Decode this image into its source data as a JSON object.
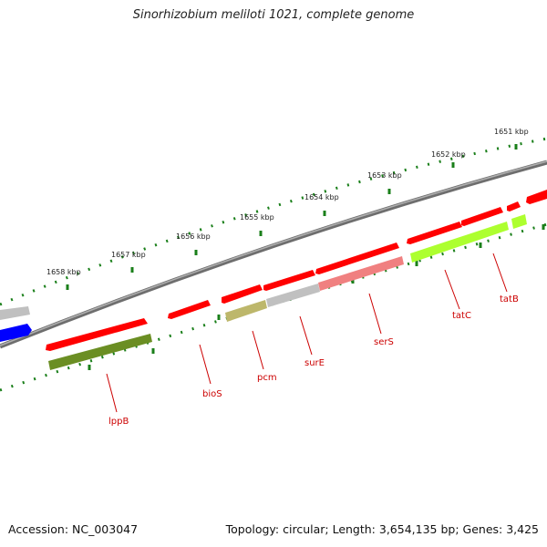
{
  "title": "Sinorhizobium meliloti 1021, complete genome",
  "footer": {
    "accession": "Accession: NC_003047",
    "summary": "Topology: circular; Length: 3,654,135 bp; Genes: 3,425"
  },
  "scale": {
    "tick_labels": [
      "1651 kbp",
      "1652 kbp",
      "1653 kbp",
      "1654 kbp",
      "1655 kbp",
      "1656 kbp",
      "1657 kbp",
      "1658 kbp"
    ]
  },
  "genes": [
    {
      "name": "lppB",
      "color": "#ff0000"
    },
    {
      "name": "bioS",
      "color": "#ff0000"
    },
    {
      "name": "pcm",
      "color": "#ff0000"
    },
    {
      "name": "surE",
      "color": "#ff0000"
    },
    {
      "name": "serS",
      "color": "#ff0000"
    },
    {
      "name": "tatC",
      "color": "#ff0000"
    },
    {
      "name": "tatB",
      "color": "#ff0000"
    }
  ],
  "colors": {
    "forward_gene": "#ff0000",
    "backbone": "#808080",
    "ticks": "#1a7f1a",
    "label_color": "#cc0000",
    "category_blue": "#0000ff",
    "category_grey": "#c0c0c0",
    "category_olive": "#6b8e23",
    "category_khaki": "#bdb76b",
    "category_pink": "#f08080",
    "category_lime": "#adff2f"
  }
}
